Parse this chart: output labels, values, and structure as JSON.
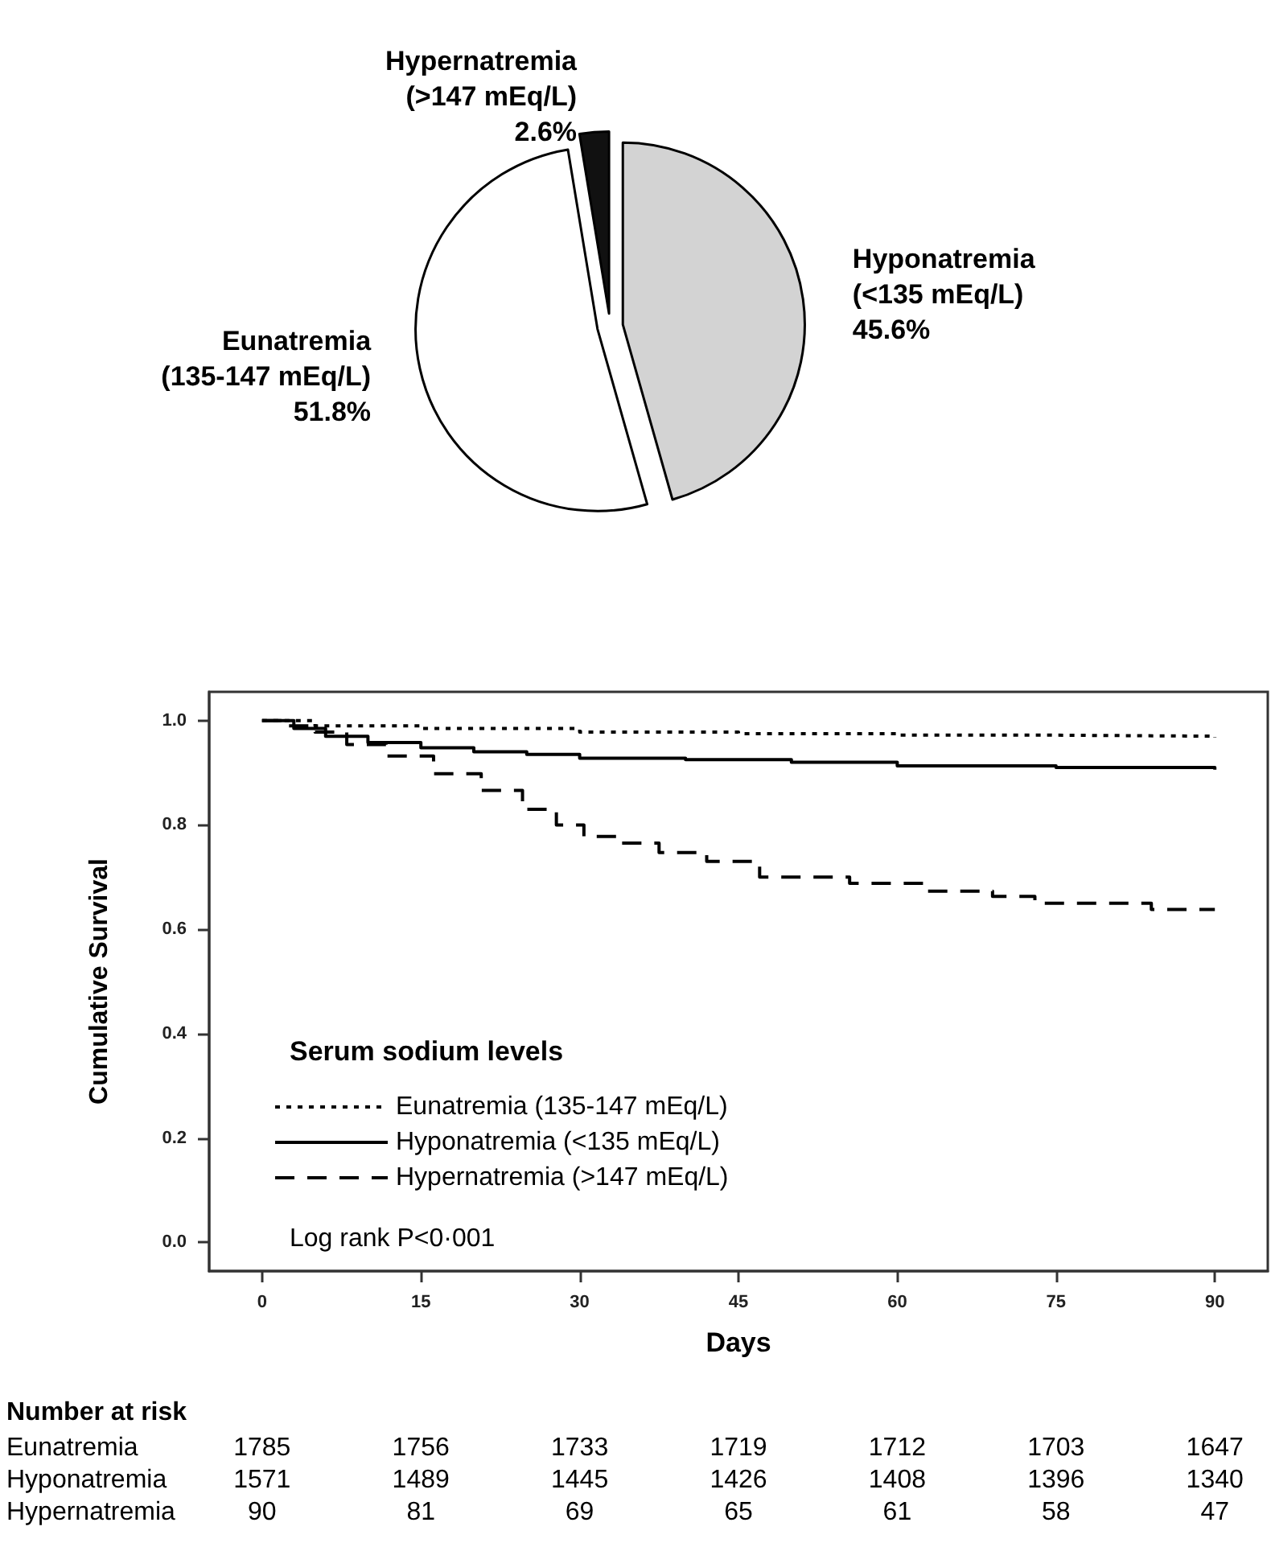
{
  "chart_data": [
    {
      "type": "pie",
      "categories": [
        "Hyponatremia (<135 mEq/L)",
        "Eunatremia (135-147 mEq/L)",
        "Hypernatremia (>147 mEq/L)"
      ],
      "values": [
        45.6,
        51.8,
        2.6
      ],
      "colors": [
        "#d3d3d3",
        "#ffffff",
        "#111111"
      ],
      "value_labels": [
        "45.6%",
        "51.8%",
        "2.6%"
      ]
    },
    {
      "type": "step",
      "xlabel": "Days",
      "ylabel": "Cumulative Survival",
      "legend_title": "Serum sodium levels",
      "legend": "bottom left",
      "grid": false,
      "xlim": [
        -5,
        95
      ],
      "ylim": [
        -0.055,
        1.055
      ],
      "xticks": [
        0,
        15,
        30,
        45,
        60,
        75,
        90
      ],
      "yticks": [
        {
          "value": 0,
          "label": "0.0"
        },
        {
          "value": 0.2,
          "label": "0.2"
        },
        {
          "value": 0.4,
          "label": "0.4"
        },
        {
          "value": 0.6,
          "label": "0.6"
        },
        {
          "value": 0.8,
          "label": "0.8"
        },
        {
          "value": 1,
          "label": "1.0"
        }
      ],
      "series": [
        {
          "name": "Eunatremia (135-147 mEq/L)",
          "color": "#000000",
          "line_style": "dotted",
          "x": [
            0,
            5,
            15,
            30,
            45,
            60,
            75,
            90
          ],
          "values": [
            1.0,
            0.99,
            0.985,
            0.978,
            0.975,
            0.972,
            0.97,
            0.967
          ]
        },
        {
          "name": "Hyponatremia (<135 mEq/L)",
          "color": "#000000",
          "line_style": "solid",
          "x": [
            0,
            3,
            6,
            10,
            15,
            20,
            25,
            30,
            40,
            50,
            60,
            75,
            90
          ],
          "values": [
            1.0,
            0.985,
            0.97,
            0.958,
            0.948,
            0.94,
            0.935,
            0.928,
            0.925,
            0.92,
            0.913,
            0.91,
            0.906
          ]
        },
        {
          "name": "Hypernatremia (>147 mEq/L)",
          "color": "#000000",
          "line_style": "dashed",
          "x": [
            0,
            2,
            5,
            8,
            11.7,
            16.2,
            20.7,
            24.6,
            27.8,
            30.4,
            33.6,
            37.5,
            42,
            47,
            55.5,
            62.6,
            69,
            73,
            84,
            90
          ],
          "values": [
            1.0,
            0.99,
            0.978,
            0.954,
            0.932,
            0.898,
            0.866,
            0.83,
            0.8,
            0.778,
            0.765,
            0.747,
            0.73,
            0.7,
            0.688,
            0.673,
            0.663,
            0.65,
            0.638,
            0.638
          ]
        }
      ],
      "annotations": [
        "Log rank P<0·001",
        "Number at risk",
        "Eunatremia 1785 1756 1733 1719 1712 1703 1647",
        "Hyponatremia 1571 1489 1445 1426 1408 1396 1340",
        "Hypernatremia 90 81 69 65 61 58 47"
      ]
    }
  ]
}
